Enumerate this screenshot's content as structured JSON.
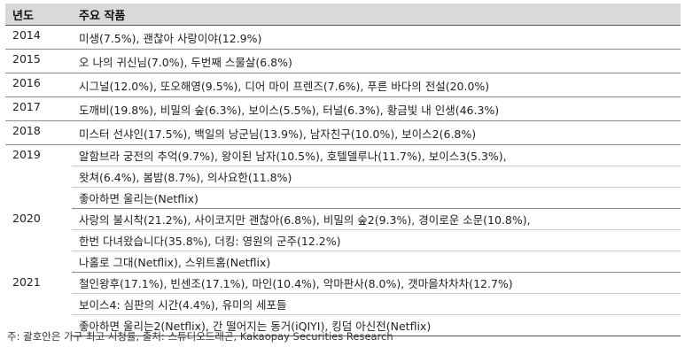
{
  "header": {
    "year": "년도",
    "works": "주요 작품"
  },
  "rows": {
    "r2014": {
      "year": "2014",
      "works": [
        "미생(7.5%), 괜찮아 사랑이야(12.9%)"
      ]
    },
    "r2015": {
      "year": "2015",
      "works": [
        "오 나의 귀신님(7.0%), 두번째 스물살(6.8%)"
      ]
    },
    "r2016": {
      "year": "2016",
      "works": [
        "시그널(12.0%), 또오해영(9.5%), 디어 마이 프렌즈(7.6%), 푸른 바다의 전설(20.0%)"
      ]
    },
    "r2017": {
      "year": "2017",
      "works": [
        "도깨비(19.8%), 비밀의 숲(6.3%), 보이스(5.5%), 터널(6.3%), 황금빛 내 인생(46.3%)"
      ]
    },
    "r2018": {
      "year": "2018",
      "works": [
        "미스터 선샤인(17.5%), 백일의 낭군님(13.9%), 남자친구(10.0%), 보이스2(6.8%)"
      ]
    },
    "r2019": {
      "year": "2019",
      "works": [
        "알함브라 궁전의 추억(9.7%), 왕이된 남자(10.5%), 호텔델루나(11.7%), 보이스3(5.3%),",
        "왓쳐(6.4%), 봄밤(8.7%), 의사요한(11.8%)",
        "좋아하면 울리는(Netflix)"
      ]
    },
    "r2020": {
      "year": "2020",
      "works": [
        "사랑의 불시착(21.2%), 사이코지만 괜찮아(6.8%), 비밀의 숲2(9.3%), 경이로운 소문(10.8%),",
        "한번 다녀왔습니다(35.8%), 더킹: 영원의 군주(12.2%)",
        "나홀로 그대(Netflix), 스위트홈(Netflix)"
      ]
    },
    "r2021": {
      "year": "2021",
      "works": [
        "철인왕후(17.1%), 빈센조(17.1%), 마인(10.4%), 악마판사(8.0%), 갯마을차차차(12.7%)",
        "보이스4: 심판의 시간(4.4%), 유미의 세포들",
        "좋아하면 울리는2(Netflix), 간 떨어지는 동거(iQIYI), 킹덤 아신전(Netflix)"
      ]
    }
  },
  "footnote": "주: 괄호안은 가구 최고 시청률, 출처: 스튜디오드래곤, Kakaopay Securities Research"
}
